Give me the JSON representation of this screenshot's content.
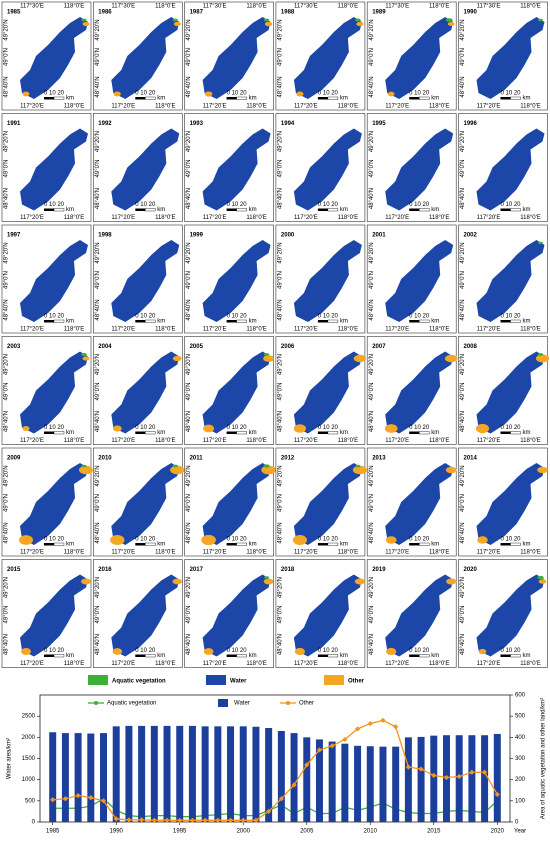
{
  "maps": {
    "years": [
      "1985",
      "1986",
      "1987",
      "1988",
      "1989",
      "1990",
      "1991",
      "1992",
      "1993",
      "1994",
      "1995",
      "1996",
      "1997",
      "1998",
      "1999",
      "2000",
      "2001",
      "2002",
      "2003",
      "2004",
      "2005",
      "2006",
      "2007",
      "2008",
      "2009",
      "2010",
      "2011",
      "2012",
      "2013",
      "2014",
      "2015",
      "2016",
      "2017",
      "2018",
      "2019",
      "2020"
    ],
    "lon_labels": [
      "117°30'E",
      "117°20'E",
      "118°0'E"
    ],
    "lat_labels": [
      "49°20'N",
      "49°0'N",
      "48°40'N"
    ],
    "scale_labels": [
      "0 10 20",
      "km"
    ],
    "legend": [
      {
        "label": "Aquatic vegetation",
        "color": "#3cb034"
      },
      {
        "label": "Water",
        "color": "#1c47a8"
      },
      {
        "label": "Other",
        "color": "#f5a623"
      }
    ]
  },
  "chart_data": {
    "type": "bar-line",
    "x": [
      1985,
      1986,
      1987,
      1988,
      1989,
      1990,
      1991,
      1992,
      1993,
      1994,
      1995,
      1996,
      1997,
      1998,
      1999,
      2000,
      2001,
      2002,
      2003,
      2004,
      2005,
      2006,
      2007,
      2008,
      2009,
      2010,
      2011,
      2012,
      2013,
      2014,
      2015,
      2016,
      2017,
      2018,
      2019,
      2020
    ],
    "xlim": [
      1984,
      2021
    ],
    "xticks": [
      1985,
      1990,
      1995,
      2000,
      2005,
      2010,
      2015,
      2020
    ],
    "xlabel": "Year",
    "ylim": [
      0,
      3000
    ],
    "yticks": [
      0,
      500,
      1000,
      1500,
      2000,
      2500
    ],
    "ylabel": "Water area/km²",
    "y2lim": [
      0,
      600
    ],
    "y2ticks": [
      0,
      100,
      200,
      300,
      400,
      500,
      600
    ],
    "y2label": "Area of aquatic vegetation and other land/km²",
    "series": [
      {
        "name": "Aquatic vegetation",
        "color": "#3cb034",
        "axis": "y2",
        "values": [
          65,
          65,
          65,
          75,
          110,
          55,
          30,
          25,
          30,
          30,
          25,
          25,
          30,
          35,
          40,
          30,
          30,
          55,
          80,
          40,
          70,
          40,
          40,
          70,
          55,
          70,
          90,
          60,
          45,
          40,
          40,
          50,
          55,
          50,
          45,
          100
        ]
      },
      {
        "name": "Water",
        "color": "#1c3f9c",
        "values": [
          2120,
          2100,
          2100,
          2090,
          2100,
          2260,
          2270,
          2270,
          2270,
          2270,
          2270,
          2270,
          2260,
          2260,
          2260,
          2260,
          2250,
          2220,
          2150,
          2100,
          2000,
          1950,
          1900,
          1850,
          1800,
          1790,
          1780,
          1780,
          2000,
          2010,
          2040,
          2050,
          2050,
          2050,
          2050,
          2080
        ]
      },
      {
        "name": "Other",
        "color": "#f5941d",
        "axis": "y2",
        "values": [
          105,
          110,
          125,
          115,
          100,
          15,
          10,
          10,
          8,
          8,
          8,
          8,
          8,
          8,
          8,
          8,
          8,
          50,
          110,
          175,
          270,
          340,
          360,
          390,
          440,
          465,
          480,
          450,
          260,
          250,
          220,
          210,
          215,
          235,
          235,
          130
        ]
      }
    ]
  }
}
